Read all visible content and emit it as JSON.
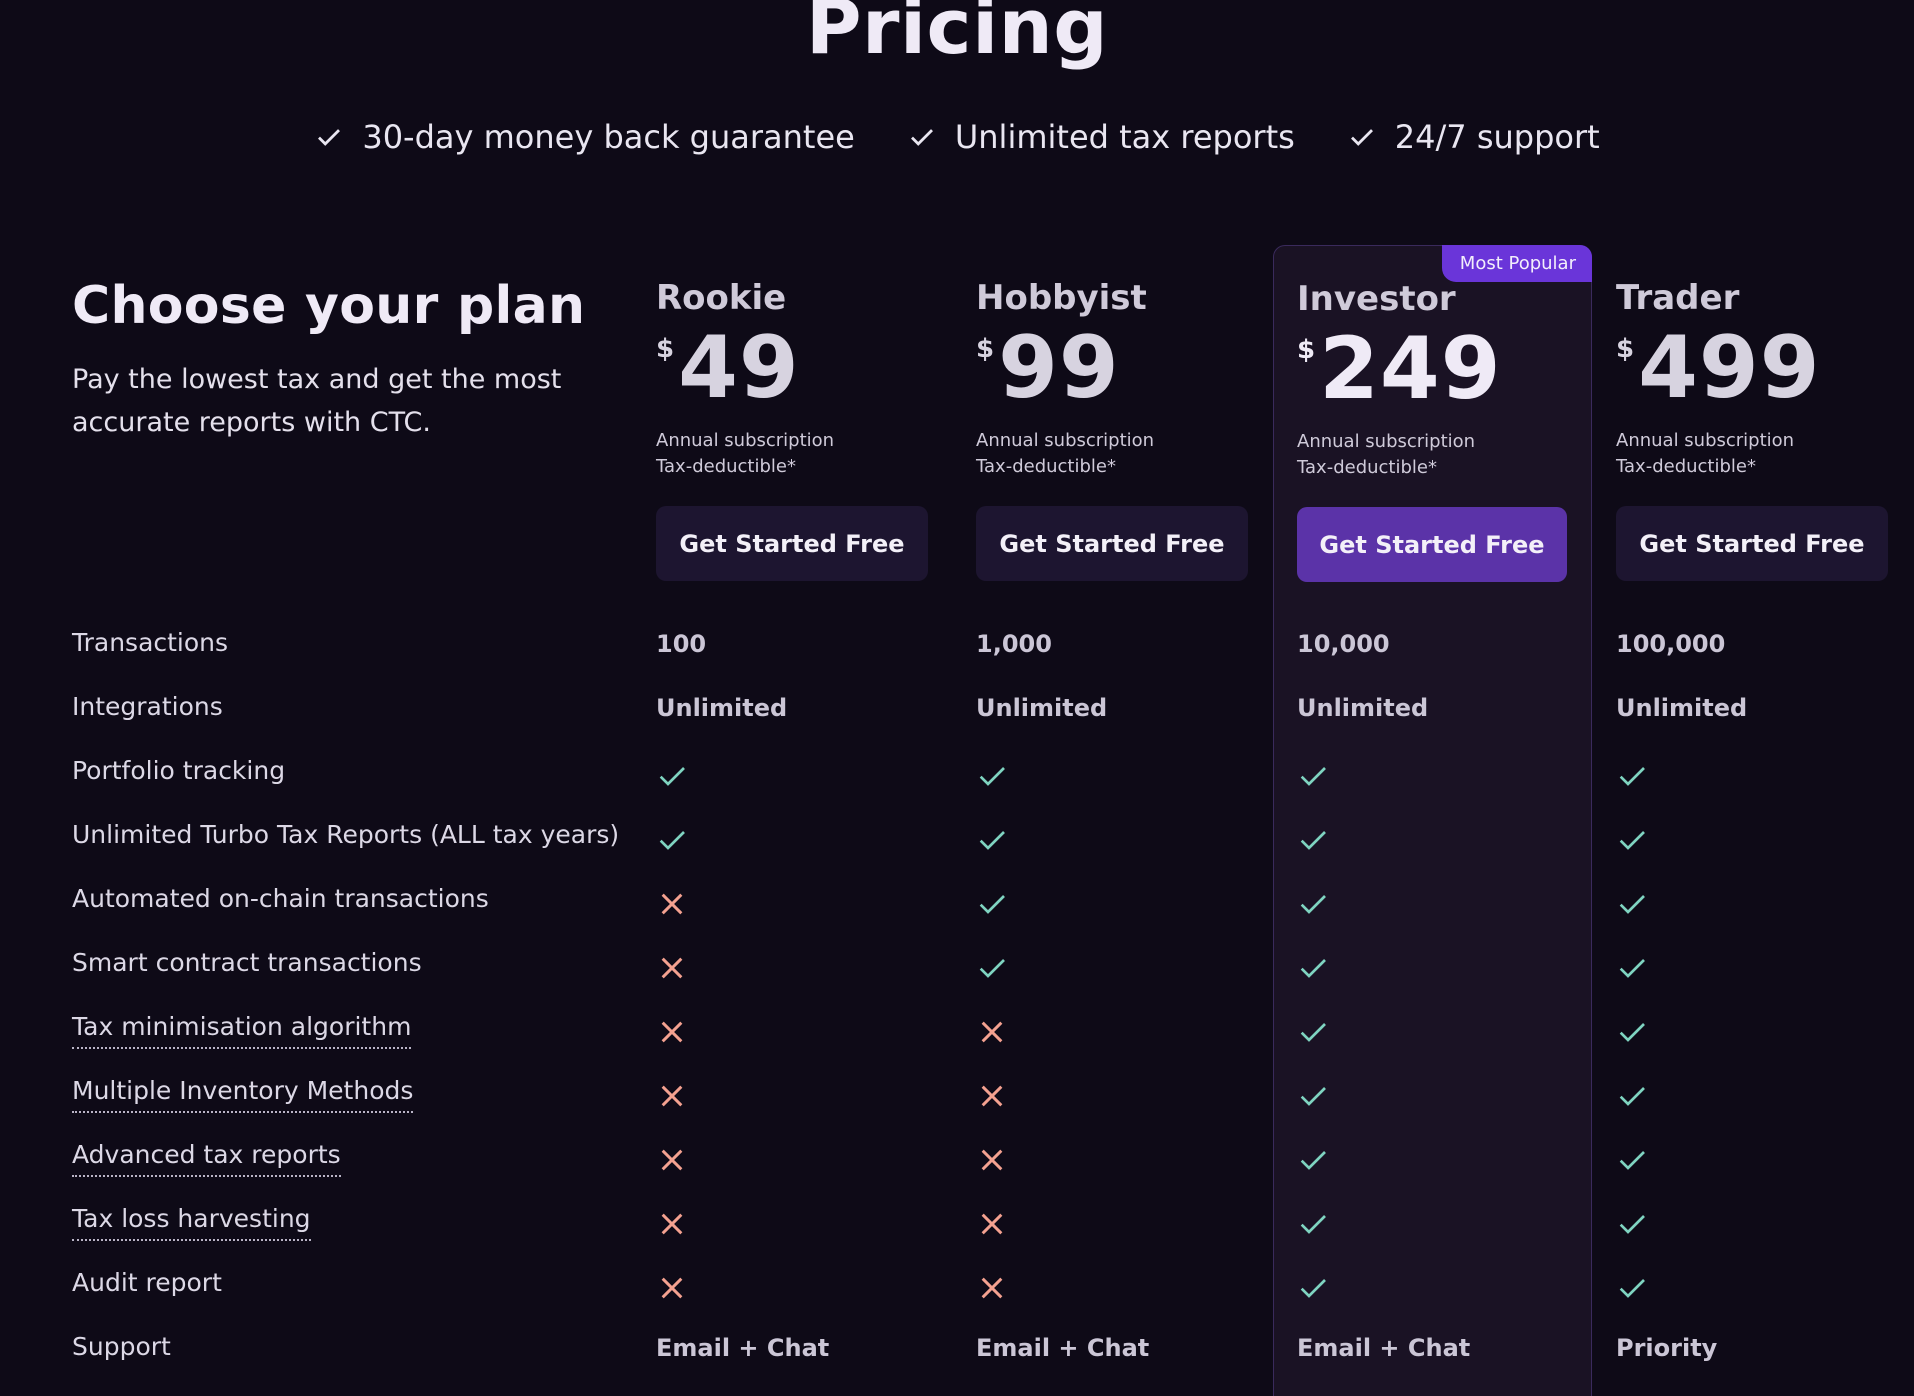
{
  "header": {
    "title": "Pricing",
    "perks": [
      {
        "icon": "check-icon",
        "label": "30-day money back guarantee"
      },
      {
        "icon": "check-icon",
        "label": "Unlimited tax reports"
      },
      {
        "icon": "check-icon",
        "label": "24/7 support"
      }
    ]
  },
  "intro": {
    "heading": "Choose your plan",
    "description": "Pay the lowest tax and get the most accurate reports with CTC."
  },
  "colors": {
    "background": "#0e0a17",
    "featured_card": "#1a1224",
    "accent": "#6a35d9",
    "featured_button": "#5b33a8",
    "button": "#1d1530",
    "check": "#7fd4c1",
    "cross": "#f4a190"
  },
  "plans": [
    {
      "name": "Rookie",
      "currency": "$",
      "price": "49",
      "line1": "Annual subscription",
      "line2": "Tax-deductible*",
      "cta": "Get Started Free",
      "featured": false
    },
    {
      "name": "Hobbyist",
      "currency": "$",
      "price": "99",
      "line1": "Annual subscription",
      "line2": "Tax-deductible*",
      "cta": "Get Started Free",
      "featured": false
    },
    {
      "name": "Investor",
      "currency": "$",
      "price": "249",
      "line1": "Annual subscription",
      "line2": "Tax-deductible*",
      "cta": "Get Started Free",
      "featured": true,
      "badge": "Most Popular"
    },
    {
      "name": "Trader",
      "currency": "$",
      "price": "499",
      "line1": "Annual subscription",
      "line2": "Tax-deductible*",
      "cta": "Get Started Free",
      "featured": false
    }
  ],
  "features": [
    {
      "label": "Transactions",
      "tooltip": false,
      "values": [
        "100",
        "1,000",
        "10,000",
        "100,000"
      ]
    },
    {
      "label": "Integrations",
      "tooltip": false,
      "values": [
        "Unlimited",
        "Unlimited",
        "Unlimited",
        "Unlimited"
      ]
    },
    {
      "label": "Portfolio tracking",
      "tooltip": false,
      "values": [
        "check",
        "check",
        "check",
        "check"
      ]
    },
    {
      "label": "Unlimited Turbo Tax Reports (ALL tax years)",
      "tooltip": false,
      "values": [
        "check",
        "check",
        "check",
        "check"
      ]
    },
    {
      "label": "Automated on-chain transactions",
      "tooltip": false,
      "values": [
        "cross",
        "check",
        "check",
        "check"
      ]
    },
    {
      "label": "Smart contract transactions",
      "tooltip": false,
      "values": [
        "cross",
        "check",
        "check",
        "check"
      ]
    },
    {
      "label": "Tax minimisation algorithm",
      "tooltip": true,
      "values": [
        "cross",
        "cross",
        "check",
        "check"
      ]
    },
    {
      "label": "Multiple Inventory Methods",
      "tooltip": true,
      "values": [
        "cross",
        "cross",
        "check",
        "check"
      ]
    },
    {
      "label": "Advanced tax reports",
      "tooltip": true,
      "values": [
        "cross",
        "cross",
        "check",
        "check"
      ]
    },
    {
      "label": "Tax loss harvesting",
      "tooltip": true,
      "values": [
        "cross",
        "cross",
        "check",
        "check"
      ]
    },
    {
      "label": "Audit report",
      "tooltip": false,
      "values": [
        "cross",
        "cross",
        "check",
        "check"
      ]
    },
    {
      "label": "Support",
      "tooltip": false,
      "values": [
        "Email + Chat",
        "Email + Chat",
        "Email + Chat",
        "Priority"
      ]
    }
  ]
}
